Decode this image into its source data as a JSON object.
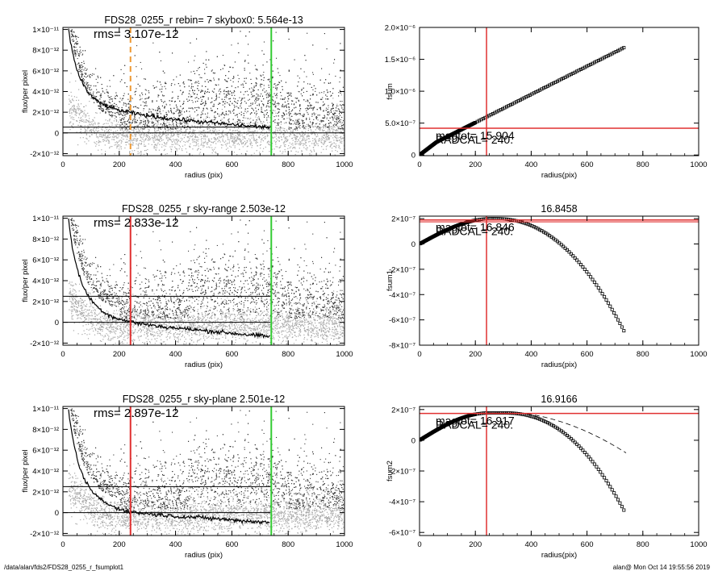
{
  "footer": {
    "path": "/data/alan/fds2/FDS28_0255_r_fsumplot1",
    "stamp": "alan@  Mon Oct 14 19:55:56 2019"
  },
  "colors": {
    "scatter_dark": "#333333",
    "scatter_light": "#a8a8a8",
    "profile": "#000000",
    "marker_red": "#e03030",
    "marker_orange": "#ee9933",
    "marker_green": "#33cc33",
    "curve_markers": "#000000"
  },
  "chart_data": [
    {
      "id": "p1",
      "type": "scatter",
      "title": "FDS28_0255_r rebin= 7    skybox0:  5.564e-13",
      "rms_label": "rms= 3.107e-12",
      "xlabel": "radius (pix)",
      "ylabel": "flux/per pixel",
      "xlim": [
        0,
        1000
      ],
      "ylim": [
        -2.2e-12,
        1.02e-11
      ],
      "x_ticks": [
        "0",
        "200",
        "400",
        "600",
        "800",
        "1000"
      ],
      "y_ticks": [
        "-2×10⁻¹²",
        "0",
        "2×10⁻¹²",
        "4×10⁻¹²",
        "6×10⁻¹²",
        "8×10⁻¹²",
        "1×10⁻¹¹"
      ],
      "scatter_dark_count": 3000,
      "scatter_light_count": 2200,
      "profile_x": [
        20,
        30,
        40,
        50,
        60,
        70,
        80,
        90,
        100,
        120,
        140,
        160,
        180,
        200,
        240,
        280,
        320,
        360,
        400,
        500,
        600,
        700,
        737
      ],
      "profile_y": [
        1e-11,
        8.3e-12,
        7.1e-12,
        6.1e-12,
        5.4e-12,
        4.8e-12,
        4.3e-12,
        3.9e-12,
        3.6e-12,
        3.1e-12,
        2.8e-12,
        2.55e-12,
        2.35e-12,
        2.2e-12,
        1.95e-12,
        1.75e-12,
        1.6e-12,
        1.45e-12,
        1.3e-12,
        1.05e-12,
        8e-13,
        6e-13,
        5.5e-13
      ],
      "hlines": [
        {
          "y": 5.564e-13,
          "x_end": 737
        },
        {
          "y": 0,
          "x_end": 1000
        }
      ],
      "vlines": [
        {
          "x": 240,
          "style": "orange-dashed"
        },
        {
          "x": 740,
          "style": "green"
        }
      ]
    },
    {
      "id": "p2",
      "type": "line",
      "title": "",
      "xlabel": "radius(pix)",
      "ylabel": "fsum",
      "xlim": [
        0,
        1000
      ],
      "ylim": [
        -1e-08,
        2e-06
      ],
      "x_ticks": [
        "0",
        "200",
        "400",
        "600",
        "800",
        "1000"
      ],
      "y_ticks": [
        "0",
        "5.0×10⁻⁷",
        "1.0×10⁻⁶",
        "1.5×10⁻⁶",
        "2.0×10⁻⁶"
      ],
      "curve": "fsum",
      "overlay_text": [
        "magtot= 15.904",
        "RADCAL= 240."
      ],
      "cross_x": 240,
      "cross_y": 4.2e-07
    },
    {
      "id": "p3",
      "type": "scatter",
      "title": "FDS28_0255_r sky-range  2.503e-12",
      "rms_label": "rms= 2.833e-12",
      "xlabel": "radius (pix)",
      "ylabel": "flux/per pixel",
      "xlim": [
        0,
        1000
      ],
      "ylim": [
        -2.2e-12,
        1.02e-11
      ],
      "x_ticks": [
        "0",
        "200",
        "400",
        "600",
        "800",
        "1000"
      ],
      "y_ticks": [
        "-2×10⁻¹²",
        "0",
        "2×10⁻¹²",
        "4×10⁻¹²",
        "6×10⁻¹²",
        "8×10⁻¹²",
        "1×10⁻¹¹"
      ],
      "scatter_dark_count": 2700,
      "scatter_light_count": 2600,
      "profile_x": [
        20,
        30,
        40,
        50,
        60,
        70,
        80,
        90,
        100,
        120,
        140,
        160,
        180,
        200,
        240,
        280,
        320,
        360,
        400,
        500,
        600,
        700,
        737
      ],
      "profile_y": [
        1e-11,
        7.8e-12,
        6.3e-12,
        5.2e-12,
        4.3e-12,
        3.6e-12,
        3e-12,
        2.55e-12,
        2.15e-12,
        1.55e-12,
        1.1e-12,
        7.5e-13,
        5e-13,
        3e-13,
        5e-14,
        -1.5e-13,
        -3e-13,
        -4.5e-13,
        -5.5e-13,
        -8e-13,
        -1.05e-12,
        -1.3e-12,
        -1.4e-12
      ],
      "hlines": [
        {
          "y": 2.503e-12,
          "x_end": 737
        },
        {
          "y": 0,
          "x_end": 737
        }
      ],
      "vlines": [
        {
          "x": 240,
          "style": "red"
        },
        {
          "x": 740,
          "style": "green"
        }
      ]
    },
    {
      "id": "p4",
      "type": "line",
      "title": "16.8458",
      "xlabel": "radius(pix)",
      "ylabel": "fsum1",
      "xlim": [
        0,
        1000
      ],
      "ylim": [
        -8e-07,
        2.2e-07
      ],
      "x_ticks": [
        "0",
        "200",
        "400",
        "600",
        "800",
        "1000"
      ],
      "y_ticks": [
        "-8×10⁻⁷",
        "-6×10⁻⁷",
        "-4×10⁻⁷",
        "-2×10⁻⁷",
        "0",
        "2×10⁻⁷"
      ],
      "curve": "fsum1",
      "overlay_text": [
        "magtot= 16.846",
        "RADCAL= 240."
      ],
      "cross_x": 240,
      "cross_y": 1.9e-07,
      "hline2_y": 1.75e-07
    },
    {
      "id": "p5",
      "type": "scatter",
      "title": "FDS28_0255_r sky-plane  2.501e-12",
      "rms_label": "rms= 2.897e-12",
      "xlabel": "radius (pix)",
      "ylabel": "flux/per pixel",
      "xlim": [
        0,
        1000
      ],
      "ylim": [
        -2.2e-12,
        1.02e-11
      ],
      "x_ticks": [
        "0",
        "200",
        "400",
        "600",
        "800",
        "1000"
      ],
      "y_ticks": [
        "-2×10⁻¹²",
        "0",
        "2×10⁻¹²",
        "4×10⁻¹²",
        "6×10⁻¹²",
        "8×10⁻¹²",
        "1×10⁻¹¹"
      ],
      "scatter_dark_count": 2700,
      "scatter_light_count": 2600,
      "profile_x": [
        20,
        30,
        40,
        50,
        60,
        70,
        80,
        90,
        100,
        120,
        140,
        160,
        180,
        200,
        240,
        280,
        320,
        360,
        400,
        500,
        600,
        700,
        737
      ],
      "profile_y": [
        1e-11,
        7.8e-12,
        6.3e-12,
        5.2e-12,
        4.3e-12,
        3.6e-12,
        3e-12,
        2.55e-12,
        2.15e-12,
        1.6e-12,
        1.15e-12,
        8e-13,
        5.5e-13,
        3.5e-13,
        1e-13,
        -5e-14,
        -1.5e-13,
        -2.5e-13,
        -3.5e-13,
        -5e-13,
        -7e-13,
        -9e-13,
        -9.5e-13
      ],
      "hlines": [
        {
          "y": 2.501e-12,
          "x_end": 737
        },
        {
          "y": 0,
          "x_end": 737
        }
      ],
      "vlines": [
        {
          "x": 240,
          "style": "red"
        },
        {
          "x": 740,
          "style": "green"
        }
      ]
    },
    {
      "id": "p6",
      "type": "line",
      "title": "16.9166",
      "xlabel": "radius(pix)",
      "ylabel": "fsum2",
      "xlim": [
        0,
        1000
      ],
      "ylim": [
        -6.2e-07,
        2.2e-07
      ],
      "x_ticks": [
        "0",
        "200",
        "400",
        "600",
        "800",
        "1000"
      ],
      "y_ticks": [
        "-6×10⁻⁷",
        "-4×10⁻⁷",
        "-2×10⁻⁷",
        "0",
        "2×10⁻⁷"
      ],
      "curve": "fsum2",
      "overlay_text": [
        "magtot= 16.917",
        "RADCAL= 240."
      ],
      "cross_x": 240,
      "cross_y": 1.75e-07,
      "dashed_curve": true
    }
  ]
}
